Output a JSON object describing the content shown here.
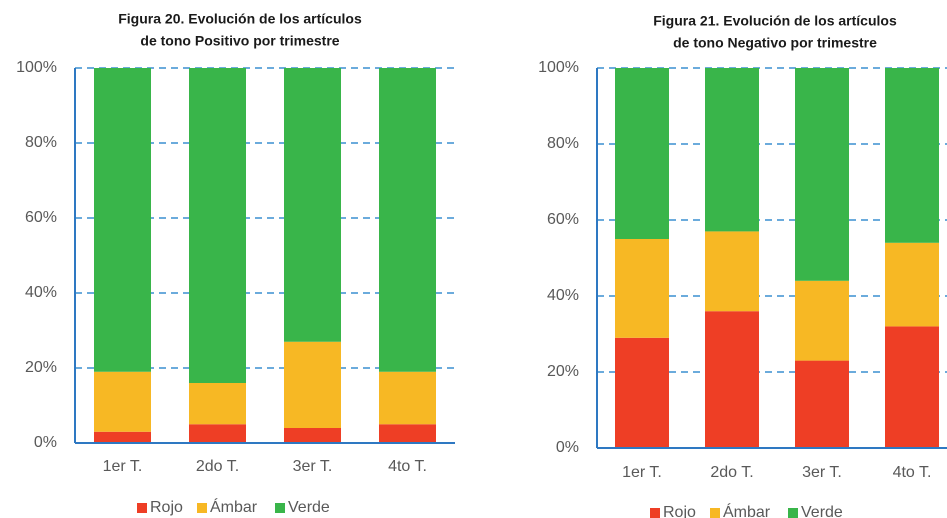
{
  "chart_data": [
    {
      "type": "bar",
      "stacked": true,
      "title": [
        "Figura 20. Evolución de los artículos",
        "de tono Positivo por trimestre"
      ],
      "categories": [
        "1er T.",
        "2do T.",
        "3er T.",
        "4to T."
      ],
      "series": [
        {
          "name": "Rojo",
          "color": "#ee3e25",
          "values": [
            3,
            5,
            4,
            5
          ]
        },
        {
          "name": "Ámbar",
          "color": "#f7b824",
          "values": [
            16,
            11,
            23,
            14
          ]
        },
        {
          "name": "Verde",
          "color": "#39b54a",
          "values": [
            81,
            84,
            73,
            81
          ]
        }
      ],
      "ylim": [
        0,
        100
      ],
      "yticks": [
        {
          "value": 0,
          "label": "0%"
        },
        {
          "value": 20,
          "label": "20%"
        },
        {
          "value": 40,
          "label": "40%"
        },
        {
          "value": 60,
          "label": "60%"
        },
        {
          "value": 80,
          "label": "80%"
        },
        {
          "value": 100,
          "label": "100%"
        }
      ],
      "grid": true,
      "legend": "bottom"
    },
    {
      "type": "bar",
      "stacked": true,
      "title": [
        "Figura 21. Evolución de los artículos",
        "de tono Negativo por trimestre"
      ],
      "categories": [
        "1er T.",
        "2do T.",
        "3er T.",
        "4to T."
      ],
      "series": [
        {
          "name": "Rojo",
          "color": "#ee3e25",
          "values": [
            29,
            36,
            23,
            32
          ]
        },
        {
          "name": "Ámbar",
          "color": "#f7b824",
          "values": [
            26,
            21,
            21,
            22
          ]
        },
        {
          "name": "Verde",
          "color": "#39b54a",
          "values": [
            45,
            43,
            56,
            46
          ]
        }
      ],
      "ylim": [
        0,
        100
      ],
      "yticks": [
        {
          "value": 0,
          "label": "0%"
        },
        {
          "value": 20,
          "label": "20%"
        },
        {
          "value": 40,
          "label": "40%"
        },
        {
          "value": 60,
          "label": "60%"
        },
        {
          "value": 80,
          "label": "80%"
        },
        {
          "value": 100,
          "label": "100%"
        }
      ],
      "grid": true,
      "legend": "bottom"
    }
  ]
}
